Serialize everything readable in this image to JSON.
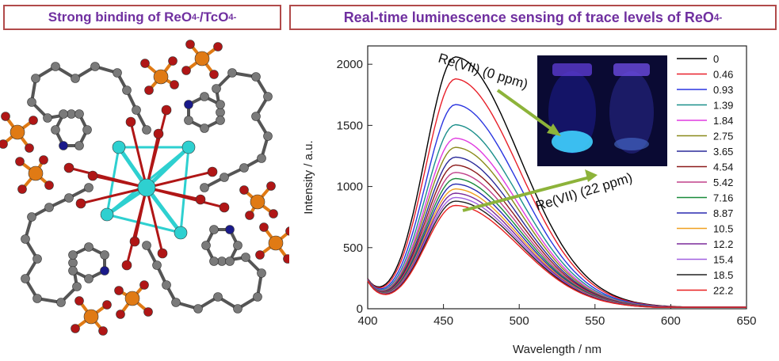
{
  "left_panel": {
    "title_main": "Strong binding of ReO",
    "title_sub1": "4",
    "title_sup1": "-",
    "title_mid": " /TcO",
    "title_sub2": "4",
    "title_sup2": "-"
  },
  "right_panel": {
    "title_main": "Real-time luminescence sensing of trace levels of ReO",
    "title_sub": "4",
    "title_sup": "-"
  },
  "chart_data": {
    "type": "line",
    "xlabel": "Wavelength / nm",
    "ylabel": "Intensity / a.u.",
    "xlim": [
      400,
      650
    ],
    "ylim": [
      0,
      2150
    ],
    "xticks": [
      400,
      450,
      500,
      550,
      600,
      650
    ],
    "yticks": [
      0,
      500,
      1000,
      1500,
      2000
    ],
    "legend_position": "right",
    "peak_x": 458,
    "series": [
      {
        "name": "0",
        "color": "#000000",
        "peak": 2060
      },
      {
        "name": "0.46",
        "color": "#e8202a",
        "peak": 1880
      },
      {
        "name": "0.93",
        "color": "#2a35e0",
        "peak": 1670
      },
      {
        "name": "1.39",
        "color": "#1b8f8a",
        "peak": 1505
      },
      {
        "name": "1.84",
        "color": "#e03ae0",
        "peak": 1395
      },
      {
        "name": "2.75",
        "color": "#8a8a1a",
        "peak": 1320
      },
      {
        "name": "3.65",
        "color": "#2a2a9a",
        "peak": 1240
      },
      {
        "name": "4.54",
        "color": "#8b1a1a",
        "peak": 1175
      },
      {
        "name": "5.42",
        "color": "#c0408a",
        "peak": 1115
      },
      {
        "name": "7.16",
        "color": "#1a8a3a",
        "peak": 1065
      },
      {
        "name": "8.87",
        "color": "#2828b0",
        "peak": 1020
      },
      {
        "name": "10.5",
        "color": "#f0a020",
        "peak": 980
      },
      {
        "name": "12.2",
        "color": "#7a2a9a",
        "peak": 945
      },
      {
        "name": "15.4",
        "color": "#a060e0",
        "peak": 910
      },
      {
        "name": "18.5",
        "color": "#222222",
        "peak": 880
      },
      {
        "name": "22.2",
        "color": "#e82020",
        "peak": 845
      }
    ],
    "annotations": [
      {
        "text": "Re(VII) (0 ppm)"
      },
      {
        "text": "Re(VII) (22 ppm)"
      }
    ]
  }
}
